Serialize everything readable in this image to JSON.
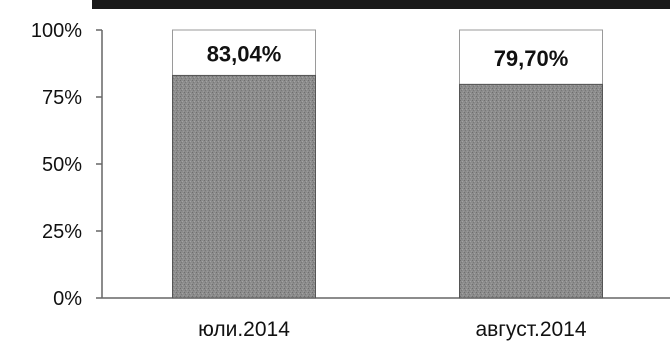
{
  "chart_data": {
    "type": "bar",
    "categories": [
      "юли.2014",
      "август.2014"
    ],
    "values": [
      83.04,
      79.7
    ],
    "data_labels": [
      "83,04%",
      "79,70%"
    ],
    "series_remainder_values": [
      16.96,
      20.3
    ],
    "ylim": [
      0,
      100
    ],
    "y_ticks": [
      0,
      25,
      50,
      75,
      100
    ],
    "y_tick_labels": [
      "0%",
      "25%",
      "50%",
      "75%",
      "100%"
    ],
    "grid": false,
    "legend": "none",
    "colors": {
      "bar_fill": "#8c8c8c",
      "remainder_fill": "#ffffff",
      "axis": "#666666",
      "top_band": "#1a1a1a"
    }
  }
}
